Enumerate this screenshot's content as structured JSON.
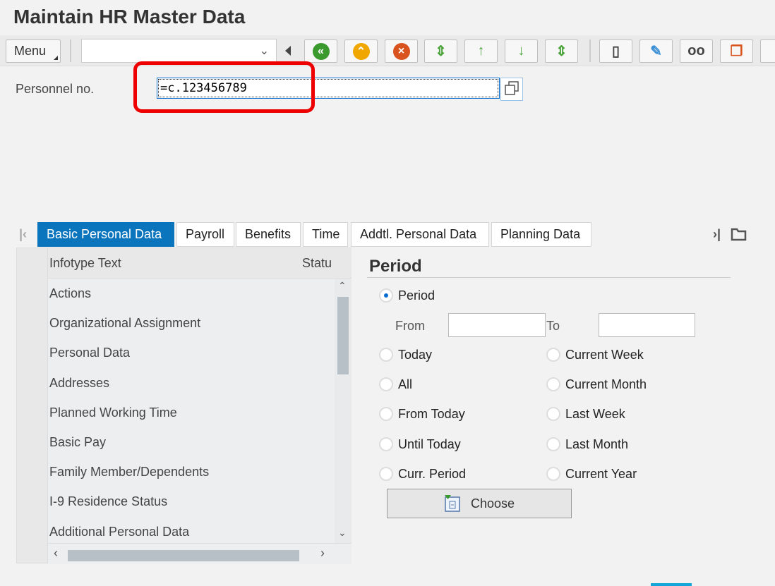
{
  "title": "Maintain HR Master Data",
  "toolbar": {
    "menu_label": "Menu",
    "command_field_value": "",
    "buttons": [
      {
        "icon": "back-icon",
        "color": "#3a9a2e"
      },
      {
        "icon": "exit-icon",
        "color": "#f0a800"
      },
      {
        "icon": "cancel-icon",
        "color": "#d9531e"
      },
      {
        "icon": "first-page-icon",
        "color": "#4aa43a"
      },
      {
        "icon": "previous-page-icon",
        "color": "#4aa43a"
      },
      {
        "icon": "next-page-icon",
        "color": "#4aa43a"
      },
      {
        "icon": "last-page-icon",
        "color": "#4aa43a"
      },
      {
        "icon": "create-icon",
        "color": "#444444"
      },
      {
        "icon": "change-pencil-icon",
        "color": "#3b8fd6"
      },
      {
        "icon": "display-glasses-icon",
        "color": "#444444"
      },
      {
        "icon": "copy-icon",
        "color": "#d9531e"
      },
      {
        "icon": "more-icon",
        "color": "#4aa43a"
      }
    ]
  },
  "personnel": {
    "label": "Personnel no.",
    "value": "=c.123456789"
  },
  "tabs": [
    {
      "label": "Basic Personal Data",
      "active": true
    },
    {
      "label": "Payroll"
    },
    {
      "label": "Benefits"
    },
    {
      "label": "Time"
    },
    {
      "label": "Addtl. Personal Data"
    },
    {
      "label": "Planning Data"
    }
  ],
  "table": {
    "columns": [
      "Infotype Text",
      "Statu"
    ],
    "rows": [
      "Actions",
      "Organizational Assignment",
      "Personal Data",
      "Addresses",
      "Planned Working Time",
      "Basic Pay",
      "Family Member/Dependents",
      "I-9 Residence Status",
      "Additional Personal Data"
    ]
  },
  "period": {
    "title": "Period",
    "period_option": "Period",
    "from_label": "From",
    "from_value": "",
    "to_label": "To",
    "to_value": "",
    "left_options": [
      "Today",
      "All",
      "From Today",
      "Until Today",
      "Curr. Period"
    ],
    "right_options": [
      "Current Week",
      "Current Month",
      "Last Week",
      "Last Month",
      "Current Year"
    ],
    "selected": "Period",
    "choose_label": "Choose"
  },
  "colors": {
    "accent": "#0a74bd",
    "highlight": "#e00000"
  }
}
